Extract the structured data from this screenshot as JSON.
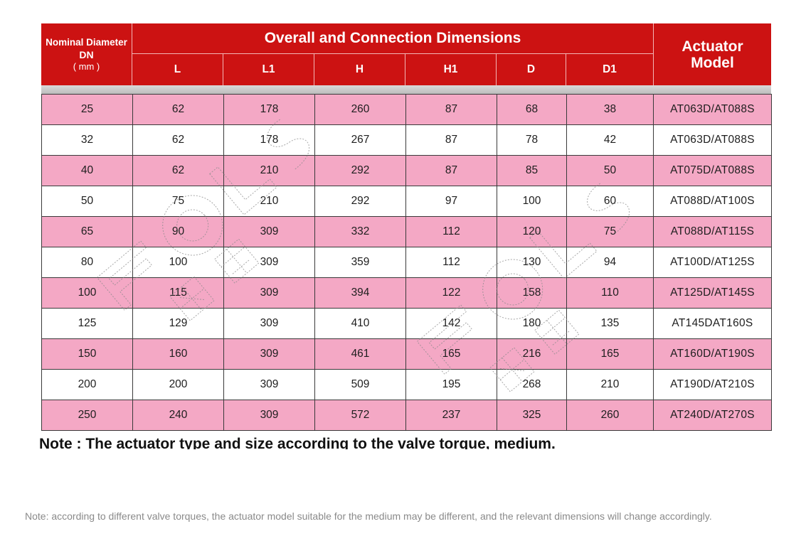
{
  "header": {
    "dn_line1": "Nominal Diameter",
    "dn_line2": "DN",
    "dn_line3": "( mm )",
    "group_title": "Overall and Connection Dimensions",
    "columns": [
      "L",
      "L1",
      "H",
      "H1",
      "D",
      "D1"
    ],
    "actuator_line1": "Actuator",
    "actuator_line2": "Model"
  },
  "rows": [
    {
      "dn": "25",
      "L": "62",
      "L1": "178",
      "H": "260",
      "H1": "87",
      "D": "68",
      "D1": "38",
      "model": "AT063D/AT088S"
    },
    {
      "dn": "32",
      "L": "62",
      "L1": "178",
      "H": "267",
      "H1": "87",
      "D": "78",
      "D1": "42",
      "model": "AT063D/AT088S"
    },
    {
      "dn": "40",
      "L": "62",
      "L1": "210",
      "H": "292",
      "H1": "87",
      "D": "85",
      "D1": "50",
      "model": "AT075D/AT088S"
    },
    {
      "dn": "50",
      "L": "75",
      "L1": "210",
      "H": "292",
      "H1": "97",
      "D": "100",
      "D1": "60",
      "model": "AT088D/AT100S"
    },
    {
      "dn": "65",
      "L": "90",
      "L1": "309",
      "H": "332",
      "H1": "112",
      "D": "120",
      "D1": "75",
      "model": "AT088D/AT115S"
    },
    {
      "dn": "80",
      "L": "100",
      "L1": "309",
      "H": "359",
      "H1": "112",
      "D": "130",
      "D1": "94",
      "model": "AT100D/AT125S"
    },
    {
      "dn": "100",
      "L": "115",
      "L1": "309",
      "H": "394",
      "H1": "122",
      "D": "158",
      "D1": "110",
      "model": "AT125D/AT145S"
    },
    {
      "dn": "125",
      "L": "129",
      "L1": "309",
      "H": "410",
      "H1": "142",
      "D": "180",
      "D1": "135",
      "model": "AT145DAT160S"
    },
    {
      "dn": "150",
      "L": "160",
      "L1": "309",
      "H": "461",
      "H1": "165",
      "D": "216",
      "D1": "165",
      "model": "AT160D/AT190S"
    },
    {
      "dn": "200",
      "L": "200",
      "L1": "309",
      "H": "509",
      "H1": "195",
      "D": "268",
      "D1": "210",
      "model": "AT190D/AT210S"
    },
    {
      "dn": "250",
      "L": "240",
      "L1": "309",
      "H": "572",
      "H1": "237",
      "D": "325",
      "D1": "260",
      "model": "AT240D/AT270S"
    }
  ],
  "note_title": "Note : The actuator type and size according to the valve torque, medium.",
  "note_small": "Note: according to different valve torques, the actuator model suitable for the medium may be different, and the relevant dimensions will change accordingly.",
  "colors": {
    "header_red": "#cc1212",
    "row_pink": "#f4a8c5",
    "row_white": "#ffffff"
  }
}
